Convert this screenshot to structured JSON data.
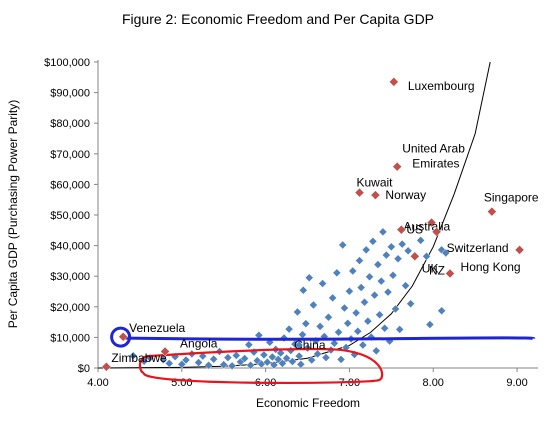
{
  "chart_data": {
    "type": "scatter",
    "title": "Figure 2: Economic Freedom and Per Capita GDP",
    "xlabel": "Economic Freedom",
    "ylabel": "Per Capita GDP (Purchasing Power Parity)",
    "xlim": [
      4,
      9.25
    ],
    "ylim": [
      0,
      100000
    ],
    "xticks": [
      "4.00",
      "5.00",
      "6.00",
      "7.00",
      "8.00",
      "9.00"
    ],
    "xtick_values": [
      4,
      5,
      6,
      7,
      8,
      9
    ],
    "yticks": [
      "$0",
      "$10,000",
      "$20,000",
      "$30,000",
      "$40,000",
      "$50,000",
      "$60,000",
      "$70,000",
      "$80,000",
      "$90,000",
      "$100,000"
    ],
    "ytick_values": [
      0,
      10000,
      20000,
      30000,
      40000,
      50000,
      60000,
      70000,
      80000,
      90000,
      100000
    ],
    "grid": false,
    "legend": "none",
    "colors": {
      "point": "#4f81bd",
      "highlight_point": "#c0504d",
      "trend": "#000000",
      "blue_annotation": "#1f24d6",
      "red_annotation": "#e8141c"
    },
    "labeled_points": [
      {
        "label": "Luxembourg",
        "x": 7.53,
        "y": 93500
      },
      {
        "label": "United Arab Emirates",
        "x": 7.57,
        "y": 65800
      },
      {
        "label": "Kuwait",
        "x": 7.12,
        "y": 57300
      },
      {
        "label": "Norway",
        "x": 7.31,
        "y": 56500
      },
      {
        "label": "Singapore",
        "x": 8.7,
        "y": 51100
      },
      {
        "label": "Australia",
        "x": 7.98,
        "y": 47500
      },
      {
        "label": "US",
        "x": 7.62,
        "y": 45200
      },
      {
        "label": "Switzerland",
        "x": 8.04,
        "y": 44500
      },
      {
        "label": "Hong Kong",
        "x": 9.03,
        "y": 38600
      },
      {
        "label": "UK",
        "x": 7.78,
        "y": 36500
      },
      {
        "label": "NZ",
        "x": 8.2,
        "y": 30900
      },
      {
        "label": "Venezuela",
        "x": 4.3,
        "y": 10200
      },
      {
        "label": "Angola",
        "x": 4.8,
        "y": 5400
      },
      {
        "label": "China",
        "x": 6.4,
        "y": 7500
      },
      {
        "label": "Zimbabwe",
        "x": 4.1,
        "y": 400
      }
    ],
    "points": [
      {
        "x": 4.42,
        "y": 4000
      },
      {
        "x": 4.55,
        "y": 2200
      },
      {
        "x": 4.62,
        "y": 3300
      },
      {
        "x": 4.78,
        "y": 2700
      },
      {
        "x": 4.85,
        "y": 1500
      },
      {
        "x": 4.92,
        "y": 3700
      },
      {
        "x": 5.0,
        "y": 1200
      },
      {
        "x": 5.05,
        "y": 2600
      },
      {
        "x": 5.12,
        "y": 4600
      },
      {
        "x": 5.2,
        "y": 1800
      },
      {
        "x": 5.25,
        "y": 3900
      },
      {
        "x": 5.32,
        "y": 900
      },
      {
        "x": 5.38,
        "y": 2900
      },
      {
        "x": 5.45,
        "y": 5400
      },
      {
        "x": 5.5,
        "y": 1100
      },
      {
        "x": 5.55,
        "y": 3400
      },
      {
        "x": 5.6,
        "y": 700
      },
      {
        "x": 5.65,
        "y": 4100
      },
      {
        "x": 5.7,
        "y": 2000
      },
      {
        "x": 5.75,
        "y": 3100
      },
      {
        "x": 5.8,
        "y": 7600
      },
      {
        "x": 5.82,
        "y": 900
      },
      {
        "x": 5.86,
        "y": 5200
      },
      {
        "x": 5.9,
        "y": 2400
      },
      {
        "x": 5.92,
        "y": 10700
      },
      {
        "x": 5.95,
        "y": 1300
      },
      {
        "x": 5.98,
        "y": 4300
      },
      {
        "x": 6.02,
        "y": 1900
      },
      {
        "x": 6.05,
        "y": 8400
      },
      {
        "x": 6.08,
        "y": 3600
      },
      {
        "x": 6.1,
        "y": 1000
      },
      {
        "x": 6.12,
        "y": 6100
      },
      {
        "x": 6.15,
        "y": 2800
      },
      {
        "x": 6.18,
        "y": 4900
      },
      {
        "x": 6.2,
        "y": 1500
      },
      {
        "x": 6.22,
        "y": 9800
      },
      {
        "x": 6.25,
        "y": 3200
      },
      {
        "x": 6.28,
        "y": 12700
      },
      {
        "x": 6.3,
        "y": 5700
      },
      {
        "x": 6.32,
        "y": 2100
      },
      {
        "x": 6.35,
        "y": 7800
      },
      {
        "x": 6.38,
        "y": 18300
      },
      {
        "x": 6.4,
        "y": 3900
      },
      {
        "x": 6.42,
        "y": 1200
      },
      {
        "x": 6.44,
        "y": 10900
      },
      {
        "x": 6.45,
        "y": 25400
      },
      {
        "x": 6.48,
        "y": 14500
      },
      {
        "x": 6.5,
        "y": 6500
      },
      {
        "x": 6.52,
        "y": 29500
      },
      {
        "x": 6.55,
        "y": 2600
      },
      {
        "x": 6.57,
        "y": 20600
      },
      {
        "x": 6.6,
        "y": 8900
      },
      {
        "x": 6.62,
        "y": 4600
      },
      {
        "x": 6.65,
        "y": 13600
      },
      {
        "x": 6.68,
        "y": 27600
      },
      {
        "x": 6.7,
        "y": 10300
      },
      {
        "x": 6.72,
        "y": 3400
      },
      {
        "x": 6.75,
        "y": 16600
      },
      {
        "x": 6.78,
        "y": 5900
      },
      {
        "x": 6.8,
        "y": 22900
      },
      {
        "x": 6.82,
        "y": 8100
      },
      {
        "x": 6.85,
        "y": 31100
      },
      {
        "x": 6.87,
        "y": 11700
      },
      {
        "x": 6.9,
        "y": 2800
      },
      {
        "x": 6.92,
        "y": 40200
      },
      {
        "x": 6.94,
        "y": 19600
      },
      {
        "x": 6.96,
        "y": 6700
      },
      {
        "x": 6.98,
        "y": 14600
      },
      {
        "x": 7.0,
        "y": 25100
      },
      {
        "x": 7.02,
        "y": 9500
      },
      {
        "x": 7.04,
        "y": 31700
      },
      {
        "x": 7.06,
        "y": 4400
      },
      {
        "x": 7.08,
        "y": 18000
      },
      {
        "x": 7.1,
        "y": 12000
      },
      {
        "x": 7.12,
        "y": 35100
      },
      {
        "x": 7.14,
        "y": 26300
      },
      {
        "x": 7.16,
        "y": 7500
      },
      {
        "x": 7.18,
        "y": 21500
      },
      {
        "x": 7.2,
        "y": 38600
      },
      {
        "x": 7.22,
        "y": 15300
      },
      {
        "x": 7.24,
        "y": 29800
      },
      {
        "x": 7.26,
        "y": 10100
      },
      {
        "x": 7.28,
        "y": 41400
      },
      {
        "x": 7.3,
        "y": 23800
      },
      {
        "x": 7.32,
        "y": 5600
      },
      {
        "x": 7.34,
        "y": 33800
      },
      {
        "x": 7.36,
        "y": 17400
      },
      {
        "x": 7.38,
        "y": 28400
      },
      {
        "x": 7.4,
        "y": 44500
      },
      {
        "x": 7.42,
        "y": 13000
      },
      {
        "x": 7.44,
        "y": 36900
      },
      {
        "x": 7.46,
        "y": 24800
      },
      {
        "x": 7.48,
        "y": 8800
      },
      {
        "x": 7.5,
        "y": 39600
      },
      {
        "x": 7.52,
        "y": 30300
      },
      {
        "x": 7.55,
        "y": 19300
      },
      {
        "x": 7.58,
        "y": 35700
      },
      {
        "x": 7.6,
        "y": 12600
      },
      {
        "x": 7.63,
        "y": 40500
      },
      {
        "x": 7.67,
        "y": 26900
      },
      {
        "x": 7.7,
        "y": 38300
      },
      {
        "x": 7.73,
        "y": 21000
      },
      {
        "x": 7.85,
        "y": 41700
      },
      {
        "x": 7.92,
        "y": 36500
      },
      {
        "x": 7.96,
        "y": 14200
      },
      {
        "x": 8.1,
        "y": 38600
      },
      {
        "x": 8.15,
        "y": 37600
      },
      {
        "x": 8.1,
        "y": 18700
      }
    ],
    "trendline": [
      {
        "x": 4.0,
        "y": 0
      },
      {
        "x": 5.0,
        "y": 200
      },
      {
        "x": 5.5,
        "y": 600
      },
      {
        "x": 6.0,
        "y": 1400
      },
      {
        "x": 6.5,
        "y": 3200
      },
      {
        "x": 7.0,
        "y": 7400
      },
      {
        "x": 7.25,
        "y": 11600
      },
      {
        "x": 7.5,
        "y": 17700
      },
      {
        "x": 7.75,
        "y": 26800
      },
      {
        "x": 8.0,
        "y": 39600
      },
      {
        "x": 8.25,
        "y": 56900
      },
      {
        "x": 8.5,
        "y": 76500
      },
      {
        "x": 8.68,
        "y": 100000
      }
    ]
  }
}
